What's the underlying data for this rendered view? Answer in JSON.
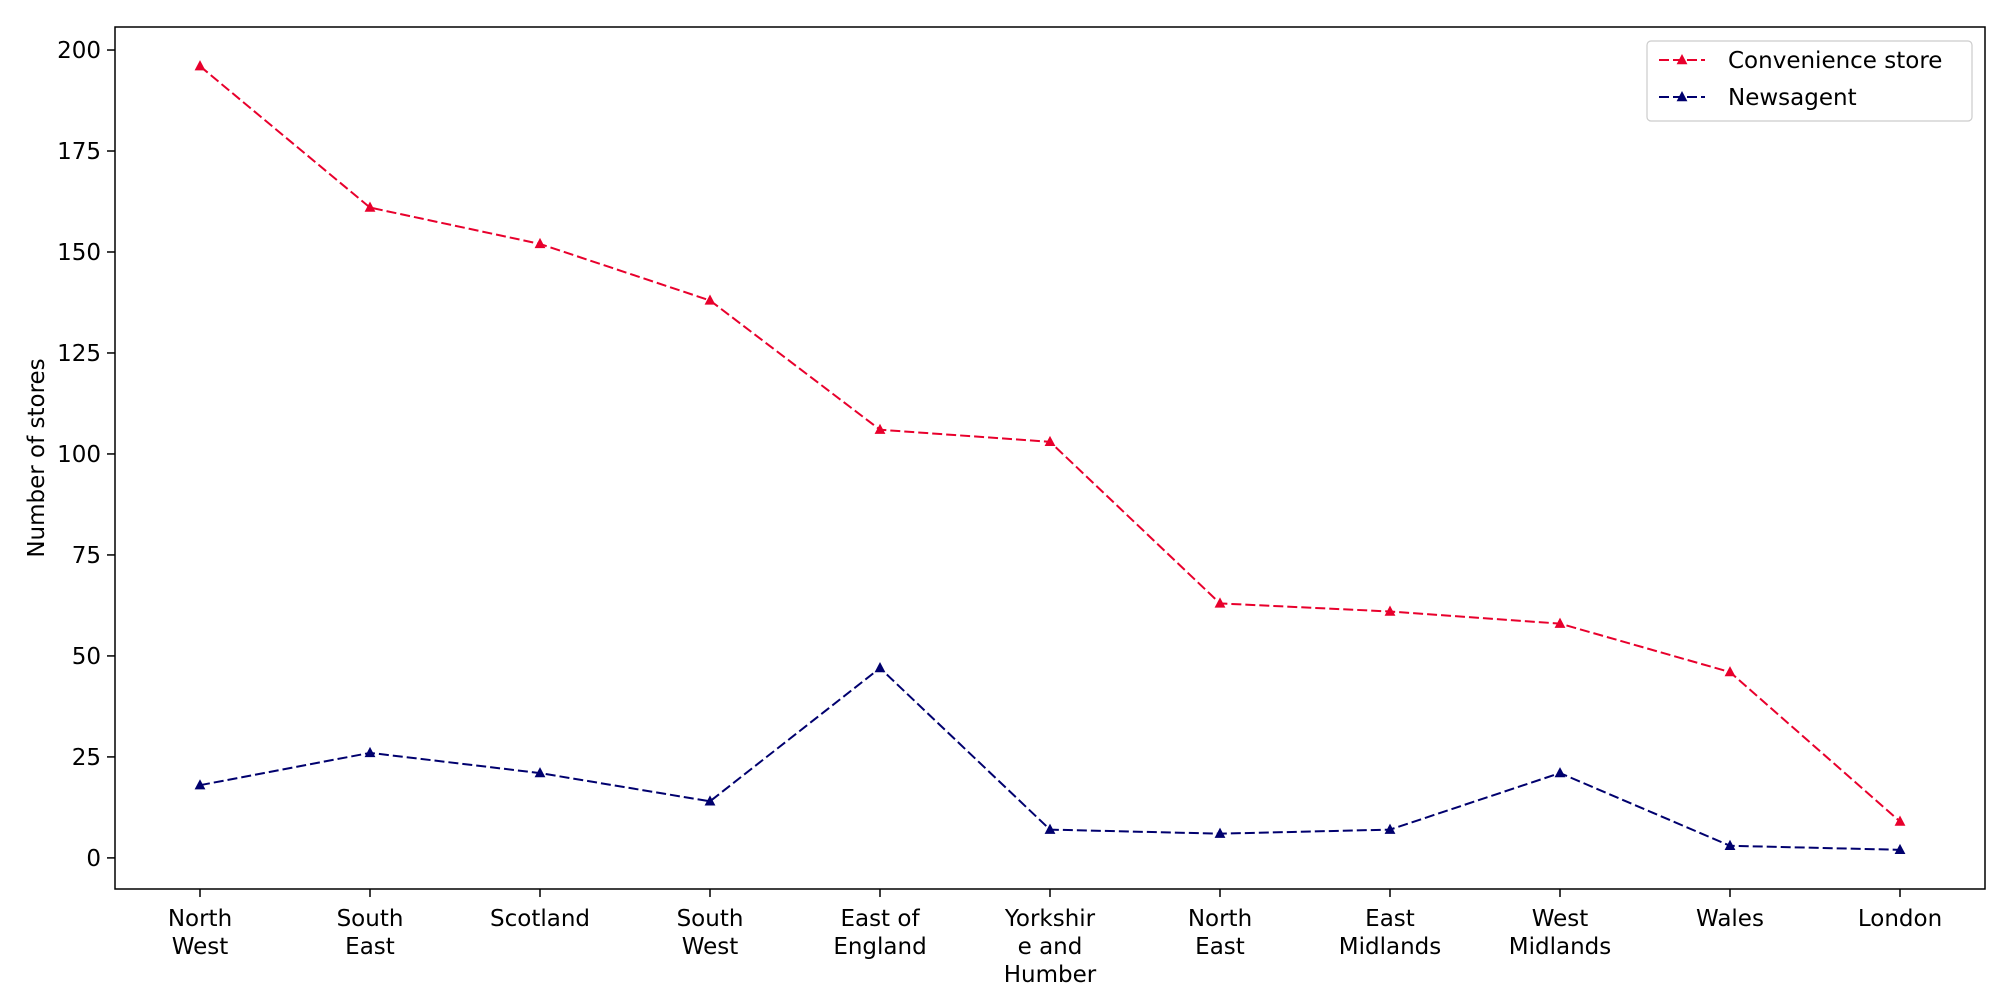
{
  "chart_data": {
    "type": "line",
    "title": "",
    "xlabel": "",
    "ylabel": "Number of stores",
    "categories": [
      [
        "North",
        "West"
      ],
      [
        "South",
        "East"
      ],
      [
        "Scotland"
      ],
      [
        "South",
        "West"
      ],
      [
        "East of",
        "England"
      ],
      [
        "Yorkshir",
        "e and",
        "Humber"
      ],
      [
        "North",
        "East"
      ],
      [
        "East",
        "Midlands"
      ],
      [
        "West",
        "Midlands"
      ],
      [
        "Wales"
      ],
      [
        "London"
      ]
    ],
    "series": [
      {
        "name": "Convenience store",
        "color": "#e8002c",
        "marker": "triangle-up",
        "line_style": "dashed",
        "values": [
          196,
          161,
          152,
          138,
          106,
          103,
          63,
          61,
          58,
          46,
          9
        ]
      },
      {
        "name": "Newsagent",
        "color": "#00006e",
        "marker": "triangle-up",
        "line_style": "dashed",
        "values": [
          18,
          26,
          21,
          14,
          47,
          7,
          6,
          7,
          21,
          3,
          2
        ]
      }
    ],
    "ylim": [
      -7.7,
      205.7
    ],
    "yticks": [
      0,
      25,
      50,
      75,
      100,
      125,
      150,
      175,
      200
    ],
    "grid": false,
    "legend_position": "top-right"
  }
}
